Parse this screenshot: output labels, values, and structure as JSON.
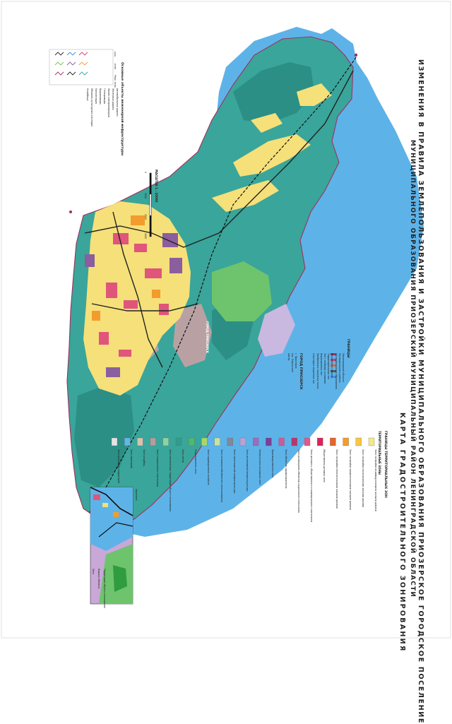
{
  "header": {
    "title_line_1": "ИЗМЕНЕНИЯ В ПРАВИЛА ЗЕМЛЕПОЛЬЗОВАНИЯ И ЗАСТРОЙКИ МУНИЦИПАЛЬНОГО ОБРАЗОВАНИЯ ПРИОЗЕРСКОЕ ГОРОДСКОЕ ПОСЕЛЕНИЕ",
    "title_line_2": "МУНИЦИПАЛЬНОГО ОБРАЗОВАНИЯ ПРИОЗЕРСКИЙ МУНИЦИПАЛЬНЫЙ РАЙОН ЛЕНИНГРАДСКОЙ ОБЛАСТИ",
    "title_line_3": "КАРТА ГРАДОСТРОИТЕЛЬНОГО ЗОНИРОВАНИЯ"
  },
  "scale": {
    "label": "МАСШТАБ 1 : 10000",
    "ticks": [
      "0",
      "1000",
      "2000",
      "3000"
    ]
  },
  "map": {
    "city_label": "ГОРОД ПРИОЗЕРСК",
    "colors": {
      "water": "#5db3e8",
      "forest": "#3aa59a",
      "forest_dark": "#2b8f86",
      "residential": "#f5e07a",
      "public": "#e0557a",
      "industrial": "#8b5e9e",
      "special": "#b9a1a3",
      "recreation": "#6dc46d",
      "agri": "#c9b8e0",
      "boundary": "#a0305e",
      "railway": "#111111"
    }
  },
  "legend_left": {
    "heading": "Основные объекты инженерной инфраструктуры",
    "items": [
      "Автомобильные дороги",
      "Железные дороги",
      "Линии электропередачи",
      "Газопроводы",
      "Водопроводы",
      "Канализация",
      "Объекты культурного наследия",
      "Кладбища"
    ],
    "side_labels": [
      "сущ.",
      "план.",
      "Реко. нстр."
    ]
  },
  "legend_boundaries": {
    "heading": "ГРАНИЦЫ",
    "items": [
      "Ленинградской области",
      "Муниципального района",
      "Муниципального образования",
      "Населенного пункта",
      "Территориальных зон",
      "Зон с особыми условиями",
      "Водоохранных зон",
      "Прибрежных защитных полос",
      "Санитарно-защитных зон"
    ],
    "city_block_title": "ГОРОД ПРИОЗЕРСК",
    "city_block_items": [
      "г. Приозерск",
      "пос. Ладожское",
      "Центр"
    ]
  },
  "legend_zones": {
    "heading": "ГРАНИЦЫ ТЕРРИТОРИАЛЬНЫХ ЗОН",
    "subheading": "ТЕРРИТОРИАЛЬНЫЕ ЗОНЫ",
    "items": [
      {
        "label": "Зона застройки индивидуальными жилыми домами",
        "color": "#f4e88a"
      },
      {
        "label": "Зона застройки малоэтажными жилыми домами",
        "color": "#f7c744"
      },
      {
        "label": "Зона застройки среднеэтажными жилыми домами",
        "color": "#f39b2c"
      },
      {
        "label": "Зона застройки многоэтажными жилыми домами",
        "color": "#e8632e"
      },
      {
        "label": "Общественно-деловая зона",
        "color": "#d9245a"
      },
      {
        "label": "Зона делового, общественного и коммерческого назначения",
        "color": "#e05a8a"
      },
      {
        "label": "Зона размещения объектов социального назначения",
        "color": "#b7366e"
      },
      {
        "label": "Зона объектов здравоохранения",
        "color": "#c95b9e"
      },
      {
        "label": "Производственная зона",
        "color": "#7b3f98"
      },
      {
        "label": "Коммунально-складская зона",
        "color": "#9b6cbf"
      },
      {
        "label": "Зона инженерной инфраструктуры",
        "color": "#b6a3d6"
      },
      {
        "label": "Зона транспортной инфраструктуры",
        "color": "#7d8a9c"
      },
      {
        "label": "Зона сельскохозяйственного использования",
        "color": "#c5e3a3"
      },
      {
        "label": "Зона садоводческих хозяйств",
        "color": "#a6d96a"
      },
      {
        "label": "Рекреационная зона",
        "color": "#4dbb6a"
      },
      {
        "label": "Зона лесов",
        "color": "#2f9c8f"
      },
      {
        "label": "Зона озелененных территорий общего пользования",
        "color": "#8ed3a0"
      },
      {
        "label": "Зона специального назначения",
        "color": "#b69b9c"
      },
      {
        "label": "Зона кладбищ",
        "color": "#d7c2b0"
      },
      {
        "label": "Зона акваторий",
        "color": "#62b6ea"
      },
      {
        "label": "Зона режимных территорий",
        "color": "#e4e4e4"
      }
    ],
    "footer_items": [
      "Территории общего пользования",
      "Водные объекты",
      "Леса"
    ]
  },
  "inset": {
    "caption": "Фрагмент"
  }
}
